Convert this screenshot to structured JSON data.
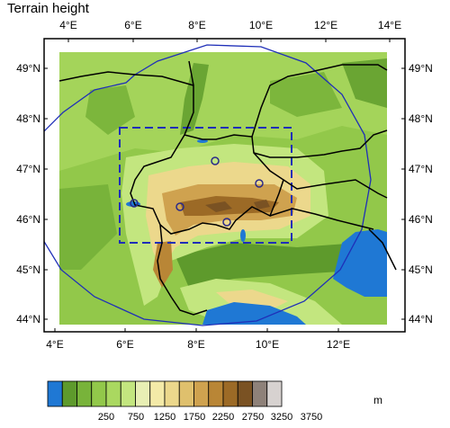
{
  "title": "Terrain height",
  "lon_ticks_top": [
    "4°E",
    "6°E",
    "8°E",
    "10°E",
    "12°E",
    "14°E"
  ],
  "lon_ticks_bottom": [
    "4°E",
    "6°E",
    "8°E",
    "10°E",
    "12°E"
  ],
  "lat_ticks_left": [
    "49°N",
    "48°N",
    "47°N",
    "46°N",
    "45°N",
    "44°N"
  ],
  "lat_ticks_right": [
    "49°N",
    "48°N",
    "47°N",
    "46°N",
    "45°N",
    "44°N"
  ],
  "colorbar": {
    "unit": "m",
    "labels": [
      "250",
      "750",
      "1250",
      "1750",
      "2250",
      "2750",
      "3250",
      "3750"
    ],
    "colors": [
      "#1f78d4",
      "#5e9a2c",
      "#78b33a",
      "#92c84a",
      "#aad860",
      "#c3e67f",
      "#e8efb4",
      "#f4eaa8",
      "#ecd88c",
      "#dfc06d",
      "#cfa24f",
      "#b98636",
      "#9c6a26",
      "#7a5223",
      "#8e8179",
      "#d7d2d0"
    ]
  },
  "colors": {
    "domain_outline": "#1f2fb8",
    "border": "#000000",
    "sea": "#1f78d4"
  }
}
